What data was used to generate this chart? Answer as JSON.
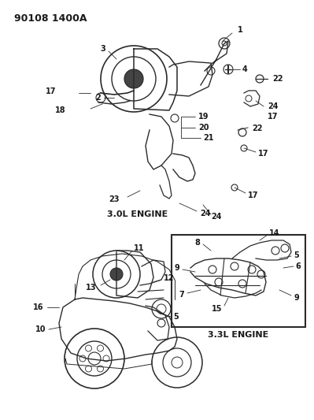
{
  "bg_color": "#ffffff",
  "line_color": "#2a2a2a",
  "text_color": "#1a1a1a",
  "fig_width": 3.99,
  "fig_height": 5.33,
  "dpi": 100,
  "header": "90108 1400A",
  "label_3ol": "3.0L ENGINE",
  "label_33l": "3.3L ENGINE"
}
